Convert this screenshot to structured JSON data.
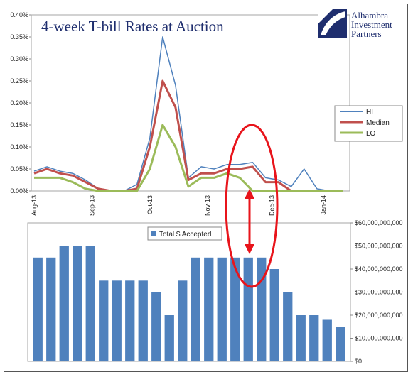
{
  "title": "4-week T-bill Rates at Auction",
  "logo": {
    "line1": "Alhambra",
    "line2": "Investment",
    "line3": "Partners",
    "color": "#1f2e6e"
  },
  "chart_data": [
    {
      "type": "line",
      "title": "4-week T-bill Rates at Auction",
      "x_tick_labels": [
        "Aug-13",
        "Sep-13",
        "Oct-13",
        "Nov-13",
        "Dec-13",
        "Jan-14"
      ],
      "y_tick_labels": [
        "0.00%",
        "0.05%",
        "0.10%",
        "0.15%",
        "0.20%",
        "0.25%",
        "0.30%",
        "0.35%",
        "0.40%"
      ],
      "ylim": [
        0,
        0.4
      ],
      "legend_position": "right",
      "series": [
        {
          "name": "HI",
          "color": "#4f81bd",
          "values": [
            0.045,
            0.055,
            0.045,
            0.04,
            0.025,
            0.005,
            0,
            0,
            0.015,
            0.12,
            0.35,
            0.24,
            0.03,
            0.055,
            0.05,
            0.06,
            0.06,
            0.065,
            0.03,
            0.025,
            0.01,
            0.05,
            0.005,
            0,
            0
          ]
        },
        {
          "name": "Median",
          "color": "#c0504d",
          "values": [
            0.04,
            0.05,
            0.04,
            0.035,
            0.02,
            0.005,
            0,
            0,
            0.005,
            0.1,
            0.25,
            0.19,
            0.025,
            0.04,
            0.04,
            0.05,
            0.05,
            0.055,
            0.02,
            0.02,
            0,
            0,
            0,
            0,
            0
          ]
        },
        {
          "name": "LO",
          "color": "#9bbb59",
          "values": [
            0.03,
            0.03,
            0.03,
            0.02,
            0.005,
            0,
            0,
            0,
            0,
            0.05,
            0.15,
            0.1,
            0.01,
            0.03,
            0.03,
            0.04,
            0.03,
            0,
            0,
            0,
            0,
            0,
            0,
            0,
            0
          ]
        }
      ]
    },
    {
      "type": "bar",
      "y_tick_labels": [
        "$0",
        "$10,000,000,000",
        "$20,000,000,000",
        "$30,000,000,000",
        "$40,000,000,000",
        "$50,000,000,000",
        "$60,000,000,000"
      ],
      "ylim": [
        0,
        60000000000
      ],
      "y_axis_side": "right",
      "legend_position": "top-left",
      "series": [
        {
          "name": "Total $ Accepted",
          "color": "#4f81bd",
          "values": [
            45000000000,
            45000000000,
            50000000000,
            50000000000,
            50000000000,
            35000000000,
            35000000000,
            35000000000,
            35000000000,
            30000000000,
            20000000000,
            35000000000,
            45000000000,
            45000000000,
            45000000000,
            45000000000,
            45000000000,
            45000000000,
            40000000000,
            30000000000,
            20000000000,
            20000000000,
            18000000000,
            15000000000
          ]
        }
      ]
    }
  ],
  "annotation": {
    "type": "ellipse-with-double-arrow",
    "color": "#e8141b"
  }
}
